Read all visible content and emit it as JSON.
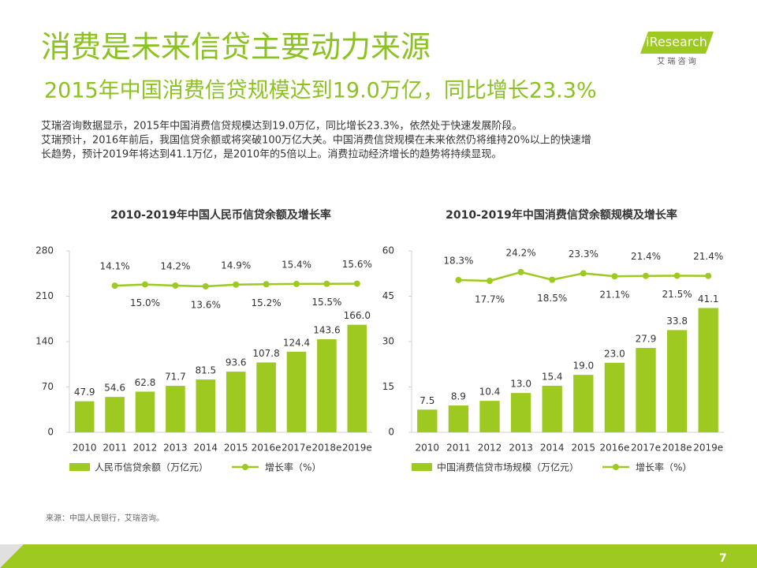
{
  "title": "消费是未来信贷主要动力来源",
  "subtitle": "2015年中国消费信贷规模达到19.0万亿，同比增长23.3%",
  "paragraph": [
    "艾瑞咨询数据显示，2015年中国消费信贷规模达到19.0万亿，同比增长23.3%，依然处于快速发展阶段。",
    "艾瑞预计，2016年前后，我国信贷余额或将突破100万亿大关。中国消费信贷规模在未来依然仍将维持20%以上的快速增",
    "长趋势，预计2019年将达到41.1万亿，是2010年的5倍以上。消费拉动经济增长的趋势将持续显现。"
  ],
  "logo": "iResearch",
  "logo_sub": "艾 瑞 咨 询",
  "source": "来源：中国人民银行，艾瑞咨询。",
  "page_number": "7",
  "chart_data": [
    {
      "type": "bar",
      "title": "2010-2019年中国人民币信贷余额及增长率",
      "categories": [
        "2010",
        "2011",
        "2012",
        "2013",
        "2014",
        "2015",
        "2016e",
        "2017e",
        "2018e",
        "2019e"
      ],
      "ylim": [
        0,
        280
      ],
      "yticks": [
        0,
        70,
        140,
        210,
        280
      ],
      "y2lim": [
        -95,
        40
      ],
      "series": [
        {
          "name": "人民币信贷余额（万亿元）",
          "type": "bar",
          "color": "#9ec920",
          "values": [
            47.9,
            54.6,
            62.8,
            71.7,
            81.5,
            93.6,
            107.8,
            124.4,
            143.6,
            166.0
          ],
          "value_labels": [
            "47.9",
            "54.6",
            "62.8",
            "71.7",
            "81.5",
            "93.6",
            "107.8",
            "124.4",
            "143.6",
            "166.0"
          ]
        },
        {
          "name": "增长率（%）",
          "type": "line",
          "axis": "y2",
          "color": "#9ec920",
          "values": [
            null,
            14.1,
            15.0,
            14.2,
            13.6,
            14.9,
            15.2,
            15.4,
            15.5,
            15.6
          ],
          "value_labels": [
            null,
            "14.1%",
            "15.0%",
            "14.2%",
            "13.6%",
            "14.9%",
            "15.2%",
            "15.4%",
            "15.5%",
            "15.6%"
          ]
        }
      ]
    },
    {
      "type": "bar",
      "title": "2010-2019年中国消费信贷余额规模及增长率",
      "categories": [
        "2010",
        "2011",
        "2012",
        "2013",
        "2014",
        "2015",
        "2016e",
        "2017e",
        "2018e",
        "2019e"
      ],
      "ylim": [
        0,
        60
      ],
      "yticks": [
        0,
        15,
        30,
        45,
        60
      ],
      "y2lim": [
        -95,
        40
      ],
      "series": [
        {
          "name": "中国消费信贷市场规模（万亿元）",
          "type": "bar",
          "color": "#9ec920",
          "values": [
            7.5,
            8.9,
            10.4,
            13.0,
            15.4,
            19.0,
            23.0,
            27.9,
            33.8,
            41.1
          ],
          "value_labels": [
            "7.5",
            "8.9",
            "10.4",
            "13.0",
            "15.4",
            "19.0",
            "23.0",
            "27.9",
            "33.8",
            "41.1"
          ]
        },
        {
          "name": "增长率（%）",
          "type": "line",
          "axis": "y2",
          "color": "#9ec920",
          "values": [
            null,
            18.3,
            17.7,
            24.2,
            18.5,
            23.3,
            21.1,
            21.4,
            21.5,
            21.4
          ],
          "value_labels": [
            null,
            "18.3%",
            "17.7%",
            "24.2%",
            "18.5%",
            "23.3%",
            "21.1%",
            "21.4%",
            "21.5%",
            "21.4%"
          ]
        }
      ]
    }
  ]
}
